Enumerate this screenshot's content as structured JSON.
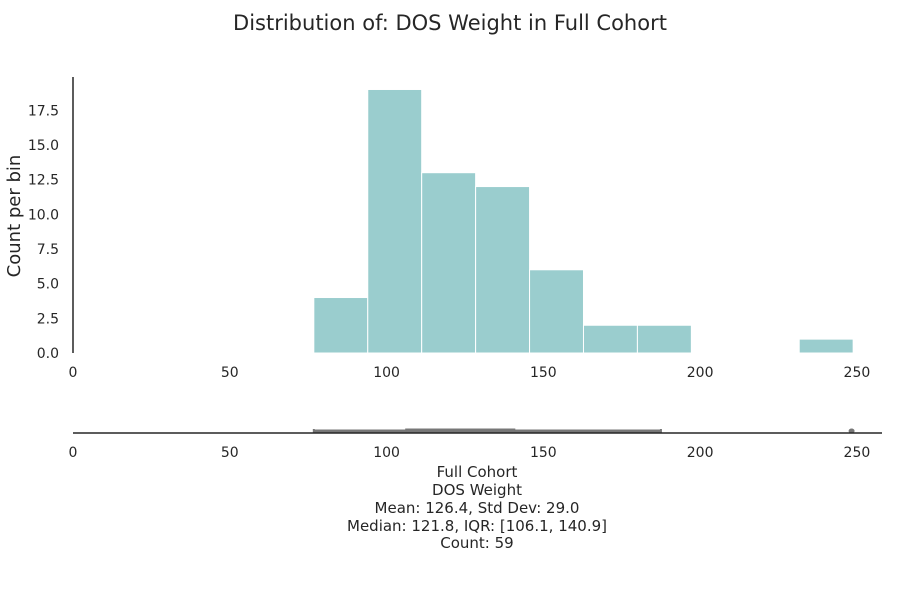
{
  "chart_data": [
    {
      "type": "bar",
      "subtype": "histogram",
      "title": "Distribution of: DOS Weight in Full Cohort",
      "xlabel": "",
      "ylabel": "Count per bin",
      "color": "#9acdce",
      "bin_edges": [
        76.8,
        94.0,
        111.2,
        128.4,
        145.6,
        162.8,
        180.0,
        197.2,
        214.4,
        231.6,
        248.8
      ],
      "values": [
        4,
        19,
        13,
        12,
        6,
        2,
        2,
        0,
        0,
        1
      ],
      "xlim": [
        0,
        258
      ],
      "ylim": [
        0,
        19.9
      ],
      "xticks": [
        "0",
        "50",
        "100",
        "150",
        "200",
        "250"
      ],
      "xtick_values": [
        0,
        50,
        100,
        150,
        200,
        250
      ],
      "yticks": [
        "0.0",
        "2.5",
        "5.0",
        "7.5",
        "10.0",
        "12.5",
        "15.0",
        "17.5"
      ],
      "ytick_values": [
        0,
        2.5,
        5,
        7.5,
        10,
        12.5,
        15,
        17.5
      ],
      "grid": false
    },
    {
      "type": "box",
      "orientation": "horizontal",
      "color": "#777777",
      "whisker_low": 76.8,
      "q1": 106.1,
      "median": 121.8,
      "q3": 140.9,
      "whisker_high": 187.5,
      "outliers": [
        248.3
      ],
      "xlim": [
        0,
        258
      ],
      "xticks": [
        "0",
        "50",
        "100",
        "150",
        "200",
        "250"
      ],
      "xtick_values": [
        0,
        50,
        100,
        150,
        200,
        250
      ]
    }
  ],
  "stats_lines": [
    "Full Cohort",
    "DOS Weight",
    "Mean: 126.4, Std Dev: 29.0",
    "Median: 121.8, IQR: [106.1, 140.9]",
    "Count: 59"
  ]
}
